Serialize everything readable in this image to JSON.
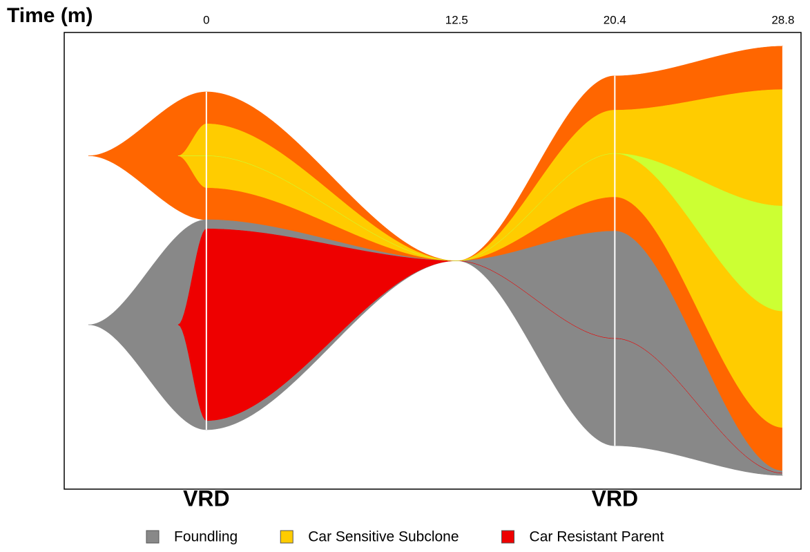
{
  "chart_data": {
    "type": "fish",
    "x_label": "Time (m)",
    "x": [
      0,
      12.5,
      20.4,
      28.8
    ],
    "xlim": [
      -7.1,
      29.7
    ],
    "xticks": [
      0,
      12.5,
      20.4,
      28.8
    ],
    "ylim": [
      0,
      100
    ],
    "series": [
      {
        "name": "Foundling",
        "color": "#888888",
        "values": [
          46,
          0,
          47,
          1
        ]
      },
      {
        "name": "Car Sensitive Subclone",
        "color": "#ffcc00",
        "values": [
          14,
          0,
          19,
          74
        ]
      },
      {
        "name": "Car Resistant Parent",
        "color": "#ee0000",
        "values": [
          42,
          0,
          0,
          0
        ]
      },
      {
        "color": "#ff6600",
        "values": [
          28,
          0,
          34,
          93
        ]
      },
      {
        "color": "#ccff33",
        "values": [
          0,
          0,
          0,
          23
        ]
      }
    ],
    "annotations": [
      {
        "text": "VRD",
        "x": 0
      },
      {
        "text": "VRD",
        "x": 20.4
      }
    ]
  }
}
